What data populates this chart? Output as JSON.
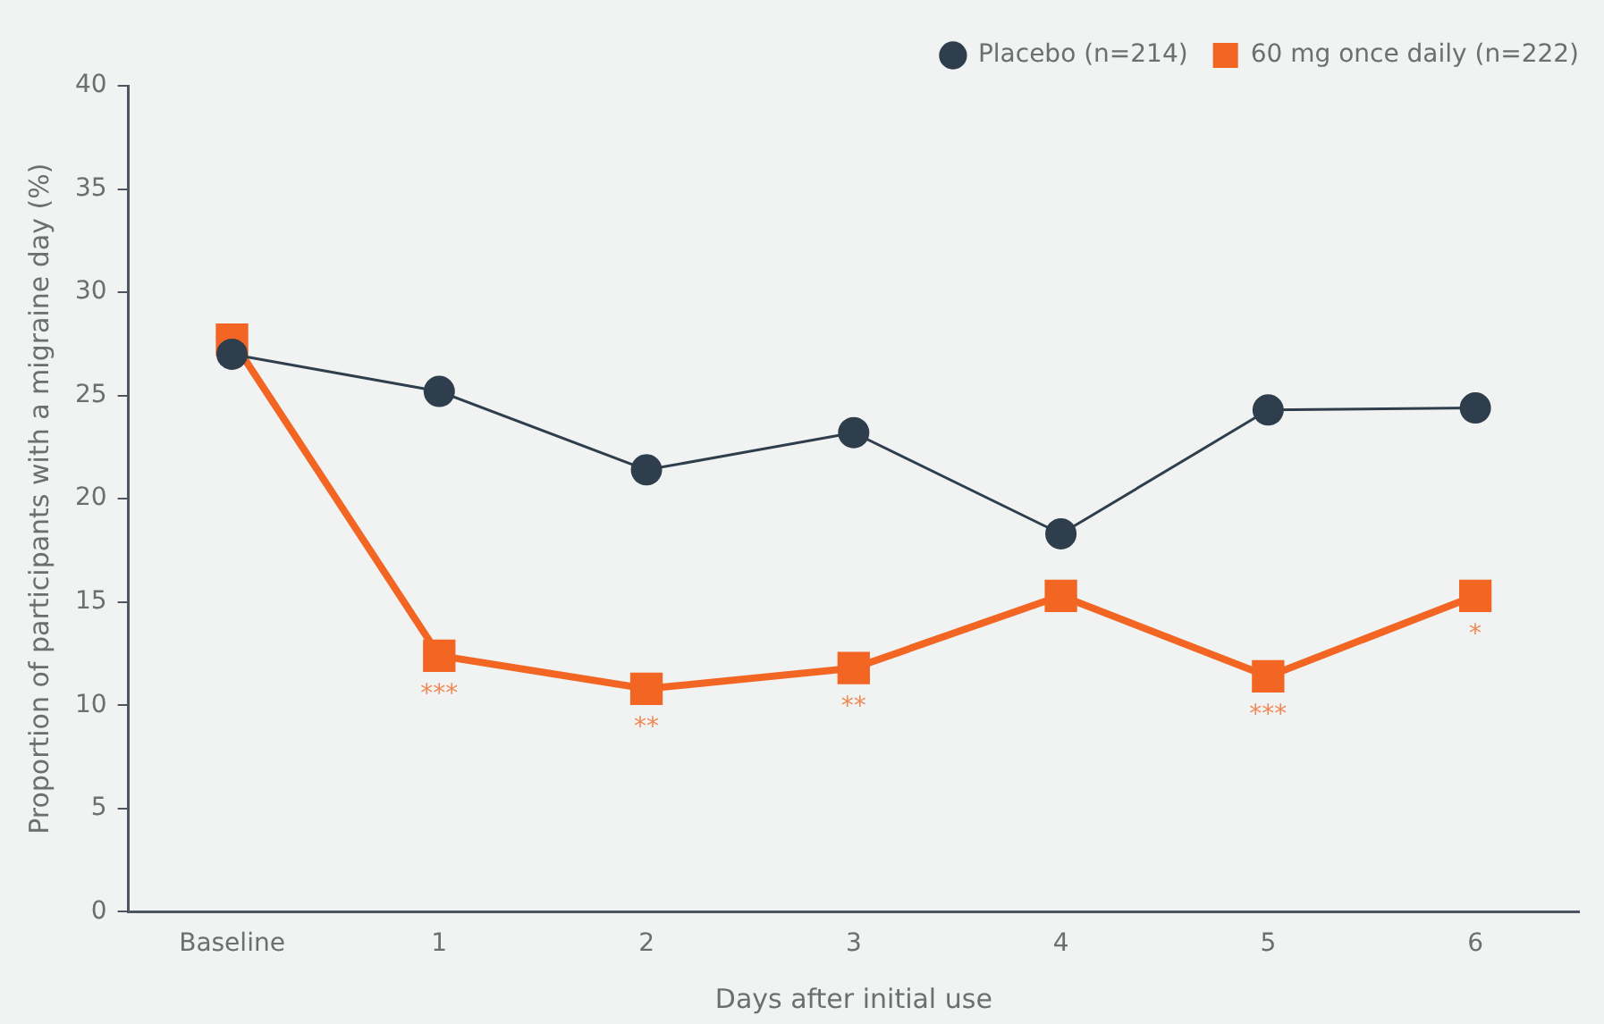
{
  "chart_data": {
    "type": "line",
    "xlabel": "Days after initial use",
    "ylabel": "Proportion of participants with a migraine day (%)",
    "categories": [
      "Baseline",
      "1",
      "2",
      "3",
      "4",
      "5",
      "6"
    ],
    "series": [
      {
        "name": "Placebo (n=214)",
        "color": "#2f3e4c",
        "marker": "circle",
        "values": [
          27.0,
          25.2,
          21.4,
          23.2,
          18.3,
          24.3,
          24.4
        ]
      },
      {
        "name": "60 mg once daily (n=222)",
        "color": "#f26522",
        "marker": "square",
        "values": [
          27.7,
          12.4,
          10.8,
          11.8,
          15.3,
          11.4,
          15.3
        ]
      }
    ],
    "ylim": [
      0,
      40
    ],
    "yticks": [
      0,
      5,
      10,
      15,
      20,
      25,
      30,
      35,
      40
    ],
    "grid": false,
    "legend": "top right",
    "annotations": [
      {
        "text": "***",
        "x": "1",
        "y": 12.4
      },
      {
        "text": "**",
        "x": "2",
        "y": 10.8
      },
      {
        "text": "**",
        "x": "3",
        "y": 11.8
      },
      {
        "text": "***",
        "x": "5",
        "y": 11.4
      },
      {
        "text": "*",
        "x": "6",
        "y": 15.3
      }
    ]
  }
}
